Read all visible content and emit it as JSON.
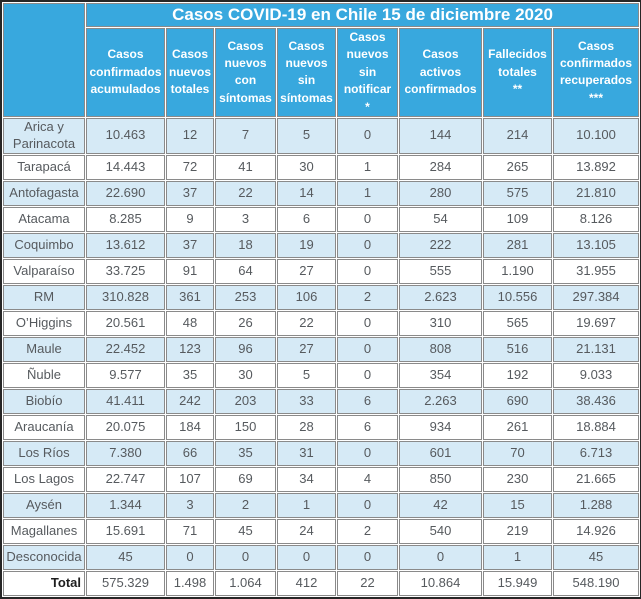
{
  "title": "Casos COVID-19 en Chile 15 de diciembre 2020",
  "colors": {
    "header_blue": "#38a8de",
    "row_alt_blue": "#d6eaf6",
    "row_white": "#ffffff",
    "cell_border": "#8a8a8a",
    "outer_border": "#262626",
    "data_text": "#565a5e",
    "header_text": "#ffffff"
  },
  "table": {
    "columns": [
      "Casos\nconfirmados\nacumulados",
      "Casos\nnuevos\ntotales",
      "Casos\nnuevos\ncon\nsíntomas",
      "Casos\nnuevos\nsin\nsíntomas",
      "Casos\nnuevos\nsin\nnotificar\n*",
      "Casos\nactivos\nconfirmados",
      "Fallecidos\ntotales\n**",
      "Casos\nconfirmados\nrecuperados\n***"
    ],
    "rows": [
      {
        "region": "Arica y\nParinacota",
        "values": [
          "10.463",
          "12",
          "7",
          "5",
          "0",
          "144",
          "214",
          "10.100"
        ]
      },
      {
        "region": "Tarapacá",
        "values": [
          "14.443",
          "72",
          "41",
          "30",
          "1",
          "284",
          "265",
          "13.892"
        ]
      },
      {
        "region": "Antofagasta",
        "values": [
          "22.690",
          "37",
          "22",
          "14",
          "1",
          "280",
          "575",
          "21.810"
        ]
      },
      {
        "region": "Atacama",
        "values": [
          "8.285",
          "9",
          "3",
          "6",
          "0",
          "54",
          "109",
          "8.126"
        ]
      },
      {
        "region": "Coquimbo",
        "values": [
          "13.612",
          "37",
          "18",
          "19",
          "0",
          "222",
          "281",
          "13.105"
        ]
      },
      {
        "region": "Valparaíso",
        "values": [
          "33.725",
          "91",
          "64",
          "27",
          "0",
          "555",
          "1.190",
          "31.955"
        ]
      },
      {
        "region": "RM",
        "values": [
          "310.828",
          "361",
          "253",
          "106",
          "2",
          "2.623",
          "10.556",
          "297.384"
        ]
      },
      {
        "region": "O’Higgins",
        "values": [
          "20.561",
          "48",
          "26",
          "22",
          "0",
          "310",
          "565",
          "19.697"
        ]
      },
      {
        "region": "Maule",
        "values": [
          "22.452",
          "123",
          "96",
          "27",
          "0",
          "808",
          "516",
          "21.131"
        ]
      },
      {
        "region": "Ñuble",
        "values": [
          "9.577",
          "35",
          "30",
          "5",
          "0",
          "354",
          "192",
          "9.033"
        ]
      },
      {
        "region": "Biobío",
        "values": [
          "41.411",
          "242",
          "203",
          "33",
          "6",
          "2.263",
          "690",
          "38.436"
        ]
      },
      {
        "region": "Araucanía",
        "values": [
          "20.075",
          "184",
          "150",
          "28",
          "6",
          "934",
          "261",
          "18.884"
        ]
      },
      {
        "region": "Los Ríos",
        "values": [
          "7.380",
          "66",
          "35",
          "31",
          "0",
          "601",
          "70",
          "6.713"
        ]
      },
      {
        "region": "Los Lagos",
        "values": [
          "22.747",
          "107",
          "69",
          "34",
          "4",
          "850",
          "230",
          "21.665"
        ]
      },
      {
        "region": "Aysén",
        "values": [
          "1.344",
          "3",
          "2",
          "1",
          "0",
          "42",
          "15",
          "1.288"
        ]
      },
      {
        "region": "Magallanes",
        "values": [
          "15.691",
          "71",
          "45",
          "24",
          "2",
          "540",
          "219",
          "14.926"
        ]
      },
      {
        "region": "Desconocida",
        "values": [
          "45",
          "0",
          "0",
          "0",
          "0",
          "0",
          "1",
          "45"
        ]
      }
    ],
    "total": {
      "label": "Total",
      "values": [
        "575.329",
        "1.498",
        "1.064",
        "412",
        "22",
        "10.864",
        "15.949",
        "548.190"
      ]
    }
  }
}
